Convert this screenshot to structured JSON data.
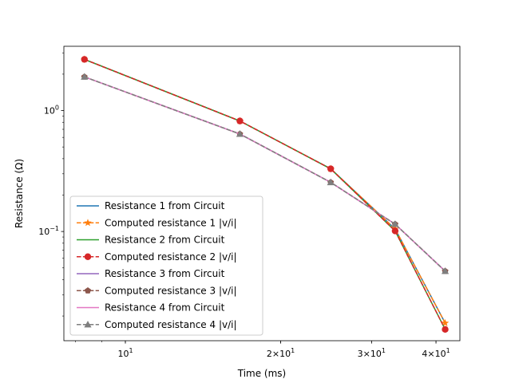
{
  "chart_data": {
    "type": "line",
    "xscale": "log",
    "yscale": "log",
    "xlabel": "Time (ms)",
    "ylabel": "Resistance (Ω)",
    "xlim": [
      7.6,
      44.5
    ],
    "ylim": [
      0.0125,
      3.4
    ],
    "grid": false,
    "legend_position": "lower-left",
    "x": [
      8.33,
      16.67,
      25.0,
      33.33,
      41.67
    ],
    "xticks": [
      {
        "value": 10,
        "base": "10",
        "exp": "1"
      },
      {
        "value": 20,
        "base": "2×10",
        "exp": "1"
      },
      {
        "value": 30,
        "base": "3×10",
        "exp": "1"
      },
      {
        "value": 40,
        "base": "4×10",
        "exp": "1"
      }
    ],
    "xminor": [
      8,
      9,
      10,
      20,
      30,
      40
    ],
    "yticks": [
      {
        "value": 1,
        "base": "10",
        "exp": "0"
      },
      {
        "value": 0.1,
        "base": "10",
        "exp": "−1"
      }
    ],
    "yminor": [
      0.02,
      0.03,
      0.04,
      0.05,
      0.06,
      0.07,
      0.08,
      0.09,
      0.2,
      0.3,
      0.4,
      0.5,
      0.6,
      0.7,
      0.8,
      0.9,
      2,
      3
    ],
    "series": [
      {
        "name": "Resistance 1 from Circuit",
        "color": "#1f77b4",
        "style": "solid",
        "marker": "none",
        "values": [
          2.65,
          0.82,
          0.33,
          0.105,
          0.0175
        ]
      },
      {
        "name": "Computed resistance 1 |v/i|",
        "color": "#ff7f0e",
        "style": "dashed",
        "marker": "star",
        "values": [
          2.65,
          0.82,
          0.33,
          0.105,
          0.0175
        ]
      },
      {
        "name": "Resistance 2 from Circuit",
        "color": "#2ca02c",
        "style": "solid",
        "marker": "none",
        "values": [
          2.65,
          0.82,
          0.33,
          0.101,
          0.0155
        ]
      },
      {
        "name": "Computed resistance 2 |v/i|",
        "color": "#d62728",
        "style": "dashed",
        "marker": "circle",
        "values": [
          2.65,
          0.82,
          0.33,
          0.101,
          0.0155
        ]
      },
      {
        "name": "Resistance 3 from Circuit",
        "color": "#9467bd",
        "style": "solid",
        "marker": "none",
        "values": [
          1.9,
          0.64,
          0.255,
          0.115,
          0.047
        ]
      },
      {
        "name": "Computed resistance 3 |v/i|",
        "color": "#8c564b",
        "style": "dashed",
        "marker": "pentagon",
        "values": [
          1.9,
          0.64,
          0.255,
          0.115,
          0.047
        ]
      },
      {
        "name": "Resistance 4 from Circuit",
        "color": "#e377c2",
        "style": "solid",
        "marker": "none",
        "values": [
          1.9,
          0.64,
          0.255,
          0.115,
          0.047
        ]
      },
      {
        "name": "Computed resistance 4 |v/i|",
        "color": "#7f7f7f",
        "style": "dashed",
        "marker": "triangle",
        "values": [
          1.9,
          0.64,
          0.255,
          0.115,
          0.047
        ]
      }
    ]
  }
}
